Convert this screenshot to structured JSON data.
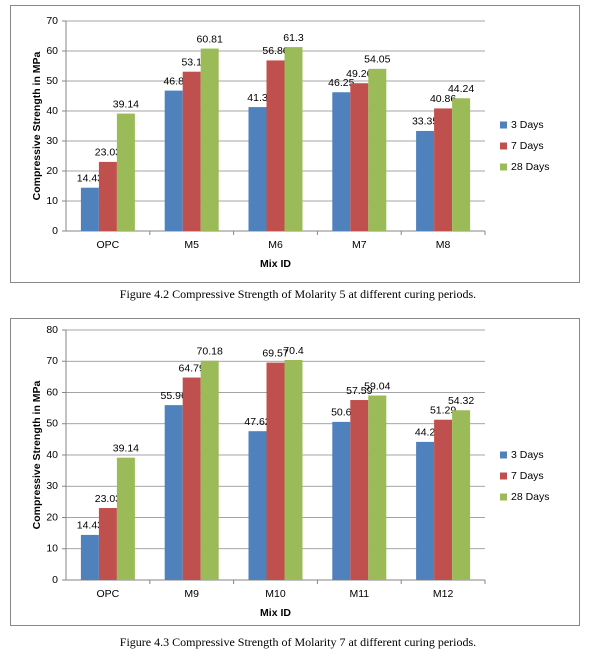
{
  "chart_data": [
    {
      "type": "bar",
      "ylabel": "Compressive Strength in MPa",
      "xlabel": "Mix ID",
      "caption": "Figure 4.2 Compressive Strength of Molarity 5 at different curing periods.",
      "categories": [
        "OPC",
        "M5",
        "M6",
        "M7",
        "M8"
      ],
      "series": [
        {
          "name": "3 Days",
          "color": "#4f81bd",
          "values": [
            14.43,
            46.8,
            41.3,
            46.25,
            33.35
          ]
        },
        {
          "name": "7 Days",
          "color": "#c0504d",
          "values": [
            23.03,
            53.1,
            56.86,
            49.26,
            40.86
          ]
        },
        {
          "name": "28 Days",
          "color": "#9bbb59",
          "values": [
            39.14,
            60.81,
            61.3,
            54.05,
            44.24
          ]
        }
      ],
      "ylim": [
        0,
        70
      ],
      "yticks": [
        0,
        10,
        20,
        30,
        40,
        50,
        60,
        70
      ],
      "grid": true,
      "legend": "right"
    },
    {
      "type": "bar",
      "ylabel": "Compressive Strength in MPa",
      "xlabel": "Mix ID",
      "caption": "Figure 4.3 Compressive Strength of Molarity 7 at different curing periods.",
      "categories": [
        "OPC",
        "M9",
        "M10",
        "M11",
        "M12"
      ],
      "series": [
        {
          "name": "3 Days",
          "color": "#4f81bd",
          "values": [
            14.43,
            55.96,
            47.62,
            50.6,
            44.2
          ]
        },
        {
          "name": "7 Days",
          "color": "#c0504d",
          "values": [
            23.03,
            64.79,
            69.57,
            57.59,
            51.29
          ]
        },
        {
          "name": "28 Days",
          "color": "#9bbb59",
          "values": [
            39.14,
            70.18,
            70.4,
            59.04,
            54.32
          ]
        }
      ],
      "ylim": [
        0,
        80
      ],
      "yticks": [
        0,
        10,
        20,
        30,
        40,
        50,
        60,
        70,
        80
      ],
      "grid": true,
      "legend": "right"
    }
  ]
}
